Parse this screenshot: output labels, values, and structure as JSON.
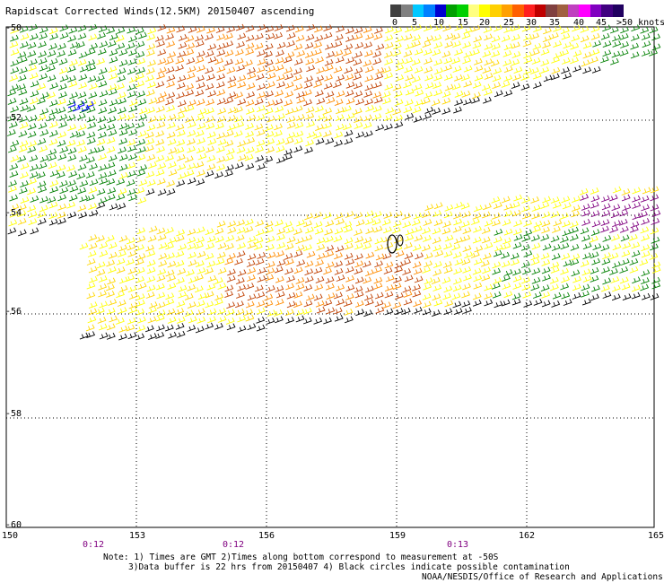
{
  "title": "Rapidscat Corrected Winds(12.5KM) 20150407 ascending",
  "legend": {
    "labels": [
      "0",
      "5",
      "10",
      "15",
      "20",
      "25",
      "30",
      "35",
      "40",
      "45",
      ">50 knots"
    ],
    "colors": [
      "#404040",
      "#808080",
      "#00c8ff",
      "#0080ff",
      "#0000d0",
      "#00a000",
      "#00d000",
      "#ffff80",
      "#ffff00",
      "#ffd000",
      "#ffa000",
      "#ff6000",
      "#ff2020",
      "#c00000",
      "#804040",
      "#a06040",
      "#c040c0",
      "#ff00ff",
      "#8000c0",
      "#400080",
      "#200060"
    ]
  },
  "axes": {
    "lat_labels": [
      "-50",
      "-52",
      "-54",
      "-56",
      "-58",
      "-60"
    ],
    "lon_labels": [
      "150",
      "153",
      "156",
      "159",
      "162",
      "165"
    ]
  },
  "times": [
    "0:12",
    "0:12",
    "0:13"
  ],
  "notes": {
    "line1": "Note: 1) Times are GMT 2)Times along bottom correspond to measurement at -50S",
    "line2": "3)Data buffer is 22 hrs from 20150407 4) Black circles indicate possible contamination"
  },
  "credit": "NOAA/NESDIS/Office of Research and Applications",
  "colors": {
    "calm": "#000000",
    "low": "#008000",
    "blue": "#0000ff",
    "moderate": "#ffd700",
    "yellow": "#ffff00",
    "orange": "#ff8c00",
    "strong": "#c04000",
    "purple": "#800080"
  }
}
